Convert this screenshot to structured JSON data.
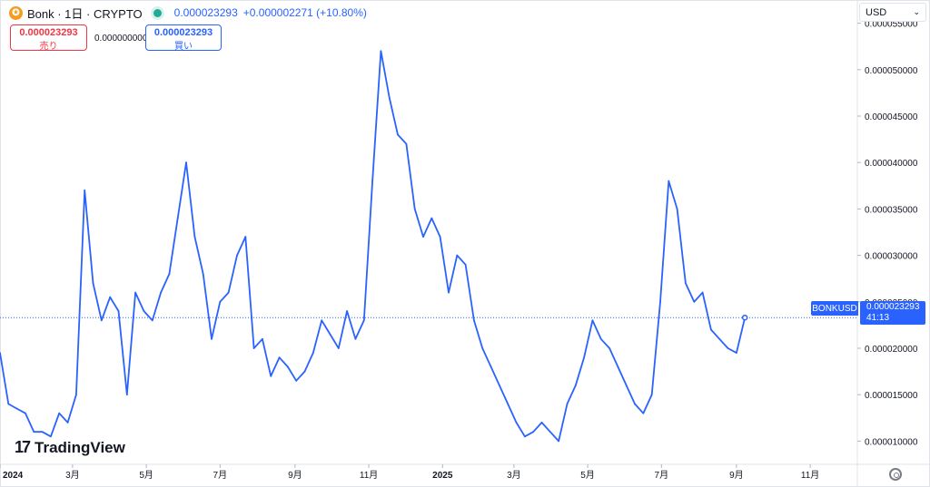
{
  "header": {
    "symbol": "Bonk · 1日 · CRYPTO",
    "coin_icon": "bonk-coin-icon",
    "last_price": "0.000023293",
    "change": "+0.000002271 (+10.80%)"
  },
  "trade": {
    "sell_price": "0.000023293",
    "sell_label": "売り",
    "spread": "0.000000000",
    "buy_price": "0.000023293",
    "buy_label": "買い"
  },
  "currency_select": "USD",
  "price_tag": {
    "symbol": "BONKUSD",
    "price": "0.000023293",
    "countdown": "41:13"
  },
  "logo_text": "TradingView",
  "colors": {
    "line": "#2962ff",
    "sell": "#f23645",
    "buy": "#2962ff",
    "live": "#22ab94"
  },
  "chart_data": {
    "type": "line",
    "title": "",
    "ylim": [
      7.5e-06,
      5.75e-05
    ],
    "y_ticks": [
      1e-05,
      1.5e-05,
      2e-05,
      2.5e-05,
      3e-05,
      3.5e-05,
      4e-05,
      4.5e-05,
      5e-05,
      5.5e-05
    ],
    "y_tick_labels": [
      "0.000010000",
      "0.000015000",
      "0.000020000",
      "0.000025000",
      "0.000030000",
      "0.000035000",
      "0.000040000",
      "0.000045000",
      "0.000050000",
      "0.000055000"
    ],
    "x_ticks": [
      "2024-01-01",
      "2024-03-01",
      "2024-05-01",
      "2024-07-01",
      "2024-09-01",
      "2024-11-01",
      "2025-01-01",
      "2025-03-01",
      "2025-05-01",
      "2025-07-01",
      "2025-09-01",
      "2025-11-01"
    ],
    "x_tick_labels": [
      "2024",
      "3月",
      "5月",
      "7月",
      "9月",
      "11月",
      "2025",
      "3月",
      "5月",
      "7月",
      "9月",
      "11月"
    ],
    "xlim": [
      "2024-01-01",
      "2025-12-10"
    ],
    "current_price": 2.3293e-05,
    "series": [
      {
        "x": [
          "2024-01-01",
          "2024-01-08",
          "2024-01-15",
          "2024-01-22",
          "2024-01-29",
          "2024-02-05",
          "2024-02-12",
          "2024-02-19",
          "2024-02-26",
          "2024-03-04",
          "2024-03-11",
          "2024-03-18",
          "2024-03-25",
          "2024-04-01",
          "2024-04-08",
          "2024-04-15",
          "2024-04-22",
          "2024-04-29",
          "2024-05-06",
          "2024-05-13",
          "2024-05-20",
          "2024-05-27",
          "2024-06-03",
          "2024-06-10",
          "2024-06-17",
          "2024-06-24",
          "2024-07-01",
          "2024-07-08",
          "2024-07-15",
          "2024-07-22",
          "2024-07-29",
          "2024-08-05",
          "2024-08-12",
          "2024-08-19",
          "2024-08-26",
          "2024-09-02",
          "2024-09-09",
          "2024-09-16",
          "2024-09-23",
          "2024-09-30",
          "2024-10-07",
          "2024-10-14",
          "2024-10-21",
          "2024-10-28",
          "2024-11-04",
          "2024-11-11",
          "2024-11-18",
          "2024-11-25",
          "2024-12-02",
          "2024-12-09",
          "2024-12-16",
          "2024-12-23",
          "2024-12-30",
          "2025-01-06",
          "2025-01-13",
          "2025-01-20",
          "2025-01-27",
          "2025-02-03",
          "2025-02-10",
          "2025-02-17",
          "2025-02-24",
          "2025-03-03",
          "2025-03-10",
          "2025-03-17",
          "2025-03-24",
          "2025-03-31",
          "2025-04-07",
          "2025-04-14",
          "2025-04-21",
          "2025-04-28",
          "2025-05-05",
          "2025-05-12",
          "2025-05-19",
          "2025-05-26",
          "2025-06-02",
          "2025-06-09",
          "2025-06-16",
          "2025-06-23",
          "2025-06-30",
          "2025-07-07",
          "2025-07-14",
          "2025-07-21",
          "2025-07-28",
          "2025-08-04",
          "2025-08-11",
          "2025-08-18",
          "2025-08-25",
          "2025-09-01",
          "2025-09-08"
        ],
        "values": [
          1.95e-05,
          1.4e-05,
          1.35e-05,
          1.3e-05,
          1.1e-05,
          1.1e-05,
          1.05e-05,
          1.3e-05,
          1.2e-05,
          1.5e-05,
          3.7e-05,
          2.7e-05,
          2.3e-05,
          2.55e-05,
          2.4e-05,
          1.5e-05,
          2.6e-05,
          2.4e-05,
          2.3e-05,
          2.6e-05,
          2.8e-05,
          3.4e-05,
          4e-05,
          3.2e-05,
          2.8e-05,
          2.1e-05,
          2.5e-05,
          2.6e-05,
          3e-05,
          3.2e-05,
          2e-05,
          2.1e-05,
          1.7e-05,
          1.9e-05,
          1.8e-05,
          1.65e-05,
          1.75e-05,
          1.95e-05,
          2.3e-05,
          2.15e-05,
          2e-05,
          2.4e-05,
          2.1e-05,
          2.3e-05,
          3.8e-05,
          5.2e-05,
          4.7e-05,
          4.3e-05,
          4.2e-05,
          3.5e-05,
          3.2e-05,
          3.4e-05,
          3.2e-05,
          2.6e-05,
          3e-05,
          2.9e-05,
          2.3e-05,
          2e-05,
          1.8e-05,
          1.6e-05,
          1.4e-05,
          1.2e-05,
          1.05e-05,
          1.1e-05,
          1.2e-05,
          1.1e-05,
          1e-05,
          1.4e-05,
          1.6e-05,
          1.9e-05,
          2.3e-05,
          2.1e-05,
          2e-05,
          1.8e-05,
          1.6e-05,
          1.4e-05,
          1.3e-05,
          1.5e-05,
          2.5e-05,
          3.8e-05,
          3.5e-05,
          2.7e-05,
          2.5e-05,
          2.6e-05,
          2.2e-05,
          2.1e-05,
          2e-05,
          1.95e-05,
          2.33e-05
        ]
      }
    ]
  }
}
